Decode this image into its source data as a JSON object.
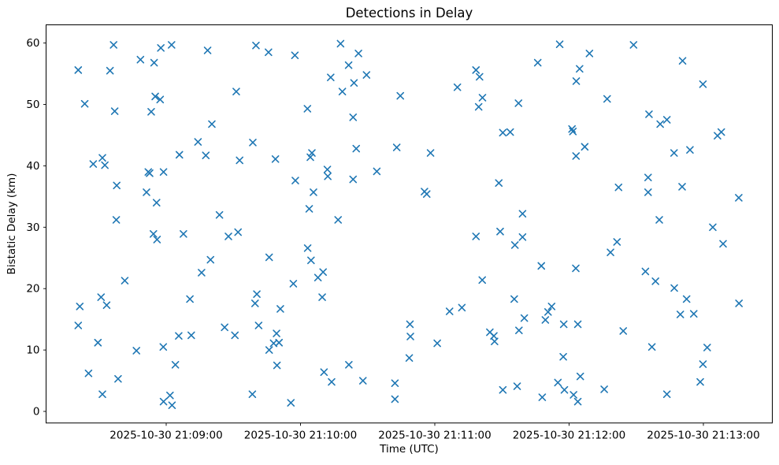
{
  "chart_data": {
    "type": "scatter",
    "title": "Detections in Delay",
    "xlabel": "Time (UTC)",
    "ylabel": "Bistatic Delay (km)",
    "legend": "none",
    "grid": false,
    "marker": "x",
    "marker_color": "#1f77b4",
    "marker_size_px": 8,
    "axis_color": "#000000",
    "background_color": "#ffffff",
    "x_encoding": "seconds after 2025-10-30 21:08:00 UTC (derived from x tick labels)",
    "xlim_seconds": [
      6.3,
      330.8
    ],
    "ylim": [
      -1.9,
      63.0
    ],
    "x_ticks": [
      {
        "seconds": 60,
        "label": "2025-10-30 21:09:00"
      },
      {
        "seconds": 120,
        "label": "2025-10-30 21:10:00"
      },
      {
        "seconds": 180,
        "label": "2025-10-30 21:11:00"
      },
      {
        "seconds": 240,
        "label": "2025-10-30 21:12:00"
      },
      {
        "seconds": 300,
        "label": "2025-10-30 21:13:00"
      }
    ],
    "y_ticks": [
      0,
      10,
      20,
      30,
      40,
      50,
      60
    ],
    "points": [
      [
        36.5,
        59.7
      ],
      [
        57.6,
        59.2
      ],
      [
        62.4,
        59.7
      ],
      [
        78.5,
        58.8
      ],
      [
        48.5,
        57.3
      ],
      [
        54.6,
        56.8
      ],
      [
        20.7,
        55.6
      ],
      [
        34.9,
        55.5
      ],
      [
        55.1,
        51.3
      ],
      [
        57.3,
        50.8
      ],
      [
        23.6,
        50.1
      ],
      [
        37.0,
        48.9
      ],
      [
        53.3,
        48.8
      ],
      [
        80.4,
        46.8
      ],
      [
        74.2,
        43.9
      ],
      [
        65.9,
        41.8
      ],
      [
        77.7,
        41.7
      ],
      [
        31.5,
        41.3
      ],
      [
        27.4,
        40.3
      ],
      [
        32.6,
        40.1
      ],
      [
        52.0,
        39.0
      ],
      [
        52.6,
        38.8
      ],
      [
        58.8,
        39.0
      ],
      [
        37.9,
        36.8
      ],
      [
        51.2,
        35.7
      ],
      [
        55.7,
        34.0
      ],
      [
        83.8,
        32.0
      ],
      [
        100.1,
        59.6
      ],
      [
        105.7,
        58.5
      ],
      [
        117.5,
        58.0
      ],
      [
        137.9,
        59.9
      ],
      [
        145.9,
        58.3
      ],
      [
        141.5,
        56.4
      ],
      [
        133.5,
        54.4
      ],
      [
        149.5,
        54.8
      ],
      [
        143.9,
        53.5
      ],
      [
        138.7,
        52.1
      ],
      [
        91.3,
        52.1
      ],
      [
        164.6,
        51.4
      ],
      [
        123.1,
        49.3
      ],
      [
        143.5,
        47.9
      ],
      [
        98.7,
        43.8
      ],
      [
        144.9,
        42.8
      ],
      [
        163.0,
        43.0
      ],
      [
        125.1,
        42.1
      ],
      [
        124.4,
        41.4
      ],
      [
        92.8,
        40.9
      ],
      [
        108.8,
        41.1
      ],
      [
        132.0,
        39.4
      ],
      [
        132.2,
        38.3
      ],
      [
        154.1,
        39.1
      ],
      [
        117.7,
        37.6
      ],
      [
        143.5,
        37.8
      ],
      [
        125.8,
        35.7
      ],
      [
        123.9,
        33.0
      ],
      [
        235.8,
        59.8
      ],
      [
        249.1,
        58.3
      ],
      [
        226.0,
        56.8
      ],
      [
        198.4,
        55.6
      ],
      [
        200.0,
        54.5
      ],
      [
        244.7,
        55.8
      ],
      [
        243.2,
        53.8
      ],
      [
        190.1,
        52.8
      ],
      [
        201.3,
        51.1
      ],
      [
        199.6,
        49.6
      ],
      [
        217.4,
        50.2
      ],
      [
        210.4,
        45.4
      ],
      [
        213.7,
        45.5
      ],
      [
        241.3,
        46.0
      ],
      [
        241.7,
        45.6
      ],
      [
        178.1,
        42.1
      ],
      [
        247.0,
        43.1
      ],
      [
        243.1,
        41.6
      ],
      [
        208.6,
        37.2
      ],
      [
        175.4,
        35.8
      ],
      [
        176.4,
        35.4
      ],
      [
        219.2,
        32.2
      ],
      [
        268.8,
        59.7
      ],
      [
        290.7,
        57.1
      ],
      [
        299.8,
        53.3
      ],
      [
        257.0,
        50.9
      ],
      [
        275.7,
        48.4
      ],
      [
        280.7,
        46.8
      ],
      [
        283.7,
        47.5
      ],
      [
        306.3,
        44.9
      ],
      [
        308.0,
        45.5
      ],
      [
        286.9,
        42.1
      ],
      [
        294.0,
        42.6
      ],
      [
        275.3,
        38.1
      ],
      [
        262.1,
        36.5
      ],
      [
        275.3,
        35.7
      ],
      [
        290.5,
        36.6
      ],
      [
        315.8,
        34.8
      ],
      [
        37.7,
        31.2
      ],
      [
        54.3,
        28.9
      ],
      [
        55.9,
        28.0
      ],
      [
        67.7,
        28.9
      ],
      [
        87.8,
        28.5
      ],
      [
        79.8,
        24.7
      ],
      [
        75.8,
        22.6
      ],
      [
        41.5,
        21.3
      ],
      [
        30.9,
        18.6
      ],
      [
        33.4,
        17.3
      ],
      [
        21.4,
        17.1
      ],
      [
        70.6,
        18.3
      ],
      [
        20.7,
        14.0
      ],
      [
        86.1,
        13.7
      ],
      [
        65.6,
        12.3
      ],
      [
        71.2,
        12.4
      ],
      [
        29.5,
        11.2
      ],
      [
        46.7,
        9.9
      ],
      [
        58.7,
        10.5
      ],
      [
        64.1,
        7.6
      ],
      [
        25.3,
        6.2
      ],
      [
        38.5,
        5.3
      ],
      [
        31.5,
        2.8
      ],
      [
        58.8,
        1.6
      ],
      [
        61.7,
        2.6
      ],
      [
        62.6,
        1.0
      ],
      [
        136.8,
        31.2
      ],
      [
        92.1,
        29.2
      ],
      [
        123.2,
        26.6
      ],
      [
        106.0,
        25.1
      ],
      [
        124.7,
        24.6
      ],
      [
        130.1,
        22.7
      ],
      [
        127.8,
        21.8
      ],
      [
        116.8,
        20.8
      ],
      [
        100.5,
        19.1
      ],
      [
        99.7,
        17.6
      ],
      [
        129.7,
        18.6
      ],
      [
        111.0,
        16.7
      ],
      [
        101.3,
        14.0
      ],
      [
        90.7,
        12.4
      ],
      [
        109.3,
        12.7
      ],
      [
        108.0,
        11.1
      ],
      [
        110.4,
        11.2
      ],
      [
        106.0,
        10.0
      ],
      [
        109.5,
        7.5
      ],
      [
        130.5,
        6.4
      ],
      [
        141.6,
        7.6
      ],
      [
        133.9,
        4.8
      ],
      [
        147.9,
        5.0
      ],
      [
        162.2,
        4.6
      ],
      [
        162.2,
        2.0
      ],
      [
        98.5,
        2.8
      ],
      [
        115.7,
        1.4
      ],
      [
        198.4,
        28.5
      ],
      [
        209.2,
        29.3
      ],
      [
        219.2,
        28.4
      ],
      [
        215.8,
        27.1
      ],
      [
        227.6,
        23.7
      ],
      [
        243.0,
        23.3
      ],
      [
        201.2,
        21.4
      ],
      [
        215.5,
        18.3
      ],
      [
        186.6,
        16.3
      ],
      [
        192.1,
        16.9
      ],
      [
        232.2,
        17.1
      ],
      [
        230.6,
        16.2
      ],
      [
        220.0,
        15.2
      ],
      [
        229.4,
        14.9
      ],
      [
        237.6,
        14.2
      ],
      [
        243.9,
        14.2
      ],
      [
        168.9,
        14.2
      ],
      [
        169.1,
        12.2
      ],
      [
        168.6,
        8.7
      ],
      [
        181.1,
        11.1
      ],
      [
        204.6,
        12.9
      ],
      [
        206.4,
        12.3
      ],
      [
        206.7,
        11.4
      ],
      [
        217.6,
        13.2
      ],
      [
        237.4,
        8.9
      ],
      [
        245.0,
        5.7
      ],
      [
        235.0,
        4.7
      ],
      [
        237.9,
        3.5
      ],
      [
        242.0,
        2.7
      ],
      [
        243.9,
        1.6
      ],
      [
        210.4,
        3.5
      ],
      [
        216.8,
        4.1
      ],
      [
        228.0,
        2.3
      ],
      [
        304.2,
        30.0
      ],
      [
        261.4,
        27.6
      ],
      [
        258.5,
        25.9
      ],
      [
        308.8,
        27.3
      ],
      [
        274.1,
        22.8
      ],
      [
        278.6,
        21.2
      ],
      [
        287.0,
        20.1
      ],
      [
        292.5,
        18.3
      ],
      [
        315.9,
        17.6
      ],
      [
        289.7,
        15.8
      ],
      [
        295.7,
        15.9
      ],
      [
        264.2,
        13.1
      ],
      [
        277.0,
        10.5
      ],
      [
        301.7,
        10.4
      ],
      [
        299.8,
        7.7
      ],
      [
        298.6,
        4.8
      ],
      [
        255.7,
        3.6
      ],
      [
        283.7,
        2.8
      ],
      [
        280.3,
        31.2
      ]
    ]
  }
}
